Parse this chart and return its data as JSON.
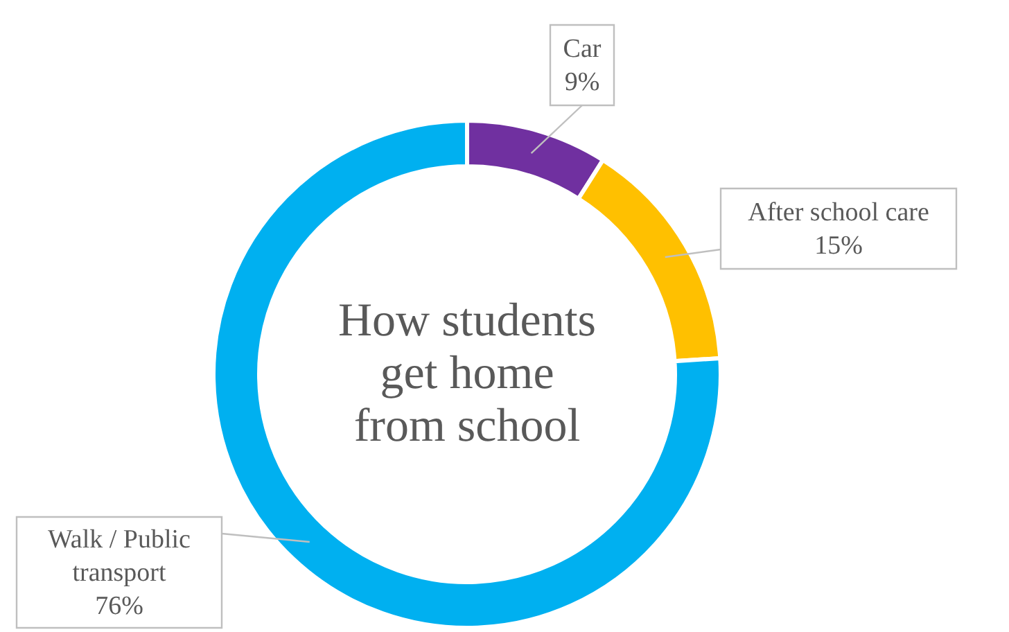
{
  "chart_data": {
    "type": "donut",
    "title": "How students get home from school",
    "categories": [
      "Car",
      "After school care",
      "Walk / Public transport"
    ],
    "values": [
      9,
      15,
      76
    ],
    "colors": [
      "#7030a0",
      "#ffc000",
      "#00b0f0"
    ],
    "value_labels": [
      "9%",
      "15%",
      "76%"
    ]
  }
}
